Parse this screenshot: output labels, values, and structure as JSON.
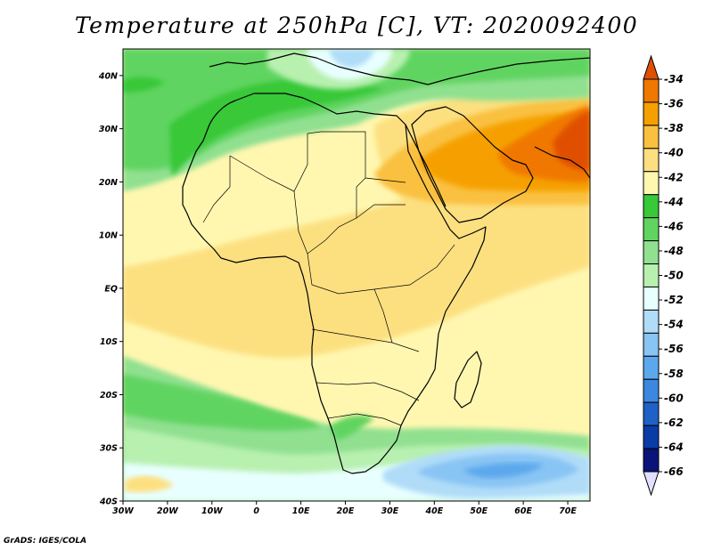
{
  "title": "Temperature at 250hPa [C], VT: 2020092400",
  "credit": "GrADS: IGES/COLA",
  "map": {
    "lon_range": [
      -30,
      75
    ],
    "lat_range": [
      -40,
      45
    ],
    "lon_ticks": [
      {
        "value": -30,
        "label": "30W"
      },
      {
        "value": -20,
        "label": "20W"
      },
      {
        "value": -10,
        "label": "10W"
      },
      {
        "value": 0,
        "label": "0"
      },
      {
        "value": 10,
        "label": "10E"
      },
      {
        "value": 20,
        "label": "20E"
      },
      {
        "value": 30,
        "label": "30E"
      },
      {
        "value": 40,
        "label": "40E"
      },
      {
        "value": 50,
        "label": "50E"
      },
      {
        "value": 60,
        "label": "60E"
      },
      {
        "value": 70,
        "label": "70E"
      }
    ],
    "lat_ticks": [
      {
        "value": 40,
        "label": "40N"
      },
      {
        "value": 30,
        "label": "30N"
      },
      {
        "value": 20,
        "label": "20N"
      },
      {
        "value": 10,
        "label": "10N"
      },
      {
        "value": 0,
        "label": "EQ"
      },
      {
        "value": -10,
        "label": "10S"
      },
      {
        "value": -20,
        "label": "20S"
      },
      {
        "value": -30,
        "label": "30S"
      },
      {
        "value": -40,
        "label": "40S"
      }
    ]
  },
  "colorbar": {
    "labels": [
      "-34",
      "-36",
      "-38",
      "-40",
      "-42",
      "-44",
      "-46",
      "-48",
      "-50",
      "-52",
      "-54",
      "-56",
      "-58",
      "-60",
      "-62",
      "-64",
      "-66"
    ],
    "colors": [
      "#e05000",
      "#f07800",
      "#f5a000",
      "#fac040",
      "#fce080",
      "#fff7b0",
      "#38c838",
      "#60d460",
      "#90e090",
      "#b8f0b0",
      "#e8ffff",
      "#b0dcf8",
      "#88c4f4",
      "#5ca8ec",
      "#3c88e0",
      "#1e62c8",
      "#0a3ca8",
      "#0a1478"
    ],
    "over_color": "#e05000",
    "under_color": "#e0e0ff"
  },
  "colors": {
    "background": "#fff7b0",
    "coast": "#000000"
  }
}
